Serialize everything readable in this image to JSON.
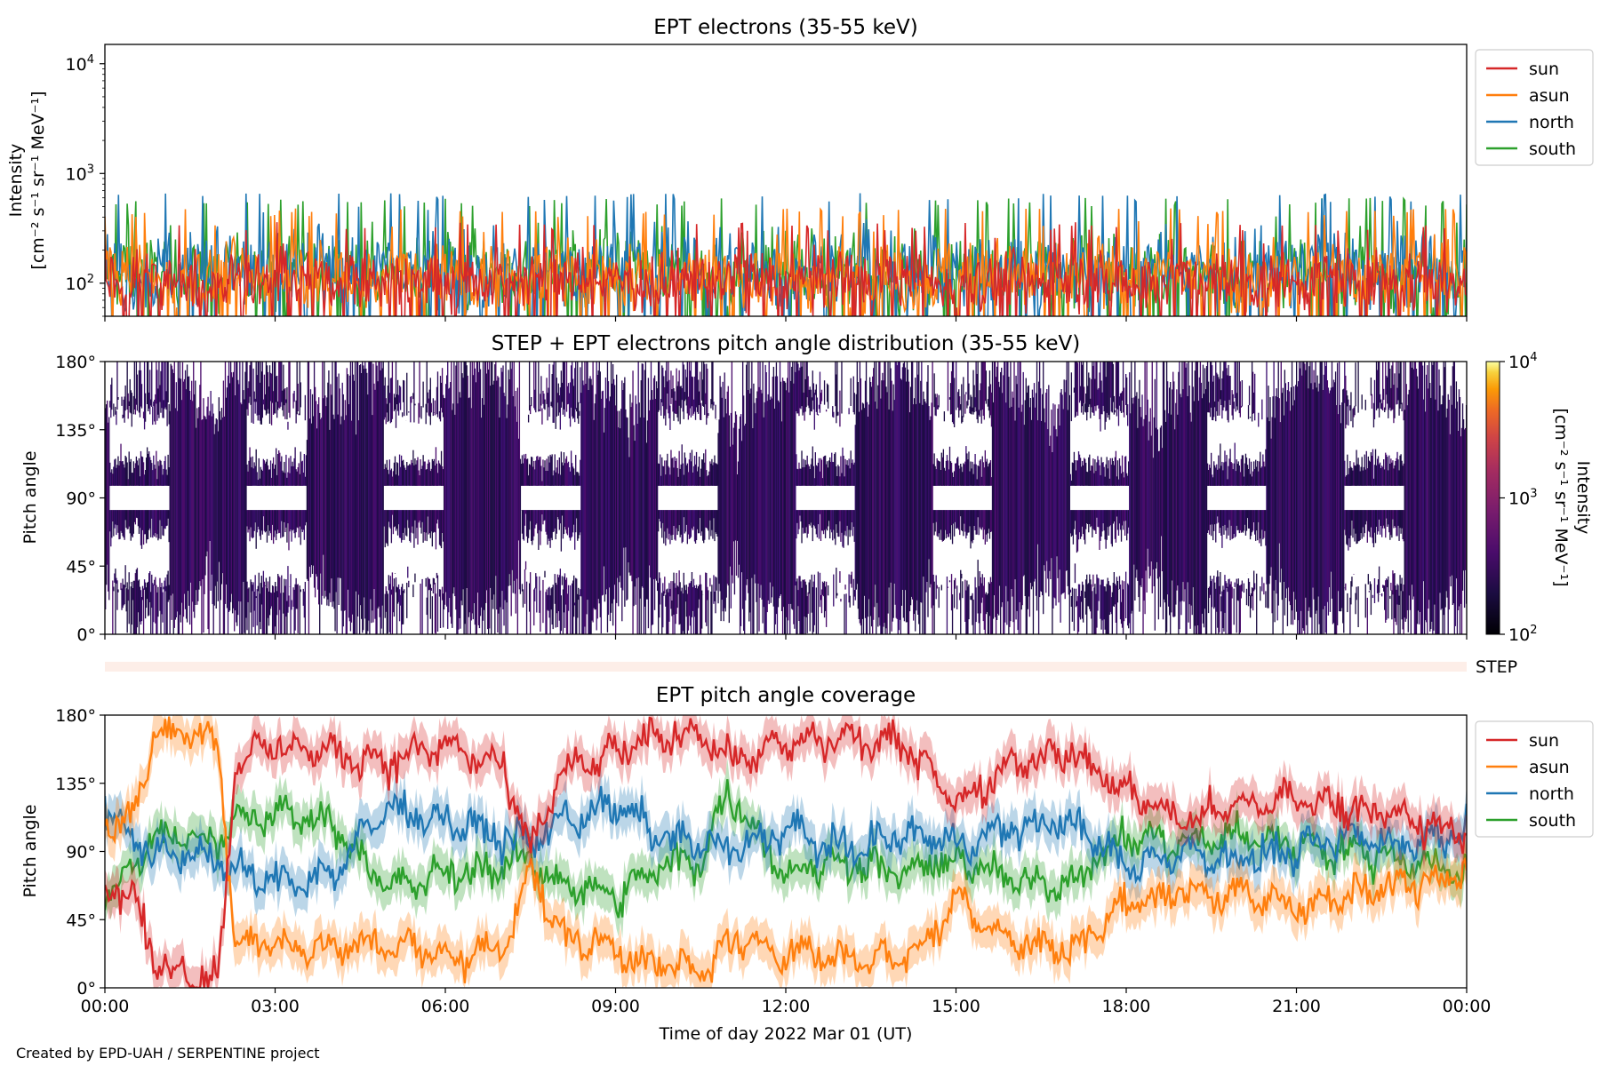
{
  "footer": "Created by EPD-UAH / SERPENTINE project",
  "xlabel": "Time of day 2022 Mar 01 (UT)",
  "time_ticks": [
    "00:00",
    "03:00",
    "06:00",
    "09:00",
    "12:00",
    "15:00",
    "18:00",
    "21:00",
    "00:00"
  ],
  "colors": {
    "sun": "#d62728",
    "asun": "#ff7f0e",
    "north": "#1f77b4",
    "south": "#2ca02c",
    "step_band": "#fdeee8"
  },
  "chart_data": [
    {
      "type": "line",
      "title": "EPT electrons (35-55 keV)",
      "ylabel": [
        "Intensity",
        "[cm⁻² s⁻¹ sr⁻¹ MeV⁻¹]"
      ],
      "yscale": "log",
      "ylim": [
        50,
        15000
      ],
      "yticks": [
        {
          "base": "10",
          "exp": "2"
        },
        {
          "base": "10",
          "exp": "3"
        },
        {
          "base": "10",
          "exp": "4"
        }
      ],
      "xlim_hours": [
        0,
        24
      ],
      "legend": [
        "sun",
        "asun",
        "north",
        "south"
      ],
      "legend_position": "right-top",
      "series_typical_ranges": {
        "sun": [
          60,
          300
        ],
        "asun": [
          60,
          400
        ],
        "north": [
          60,
          550
        ],
        "south": [
          60,
          500
        ]
      }
    },
    {
      "type": "heatmap",
      "title": "STEP + EPT electrons pitch angle distribution (35-55 keV)",
      "ylabel": "Pitch angle",
      "ylim": [
        0,
        180
      ],
      "yticks": [
        "0°",
        "45°",
        "90°",
        "135°",
        "180°"
      ],
      "colorbar": {
        "label": [
          "Intensity",
          "[cm⁻² s⁻¹ sr⁻¹ MeV⁻¹]"
        ],
        "scale": "log",
        "range": [
          100,
          10000
        ],
        "ticks": [
          {
            "base": "10",
            "exp": "2"
          },
          {
            "base": "10",
            "exp": "3"
          },
          {
            "base": "10",
            "exp": "4"
          }
        ],
        "colormap": "inferno"
      },
      "step_label": "STEP"
    },
    {
      "type": "line",
      "title": "EPT pitch angle coverage",
      "ylabel": "Pitch angle",
      "ylim": [
        0,
        180
      ],
      "yticks": [
        "0°",
        "45°",
        "90°",
        "135°",
        "180°"
      ],
      "legend": [
        "sun",
        "asun",
        "north",
        "south"
      ],
      "legend_position": "right-top",
      "series": [
        {
          "name": "sun",
          "x_hours": [
            0,
            0.5,
            0.9,
            1.5,
            2.0,
            2.3,
            3,
            4,
            5,
            6,
            7,
            7.5,
            8,
            9,
            9.8,
            10.5,
            11,
            12,
            13,
            14,
            14.5,
            15,
            16,
            17,
            18,
            19,
            20,
            21,
            22,
            23,
            24
          ],
          "values": [
            70,
            60,
            15,
            10,
            5,
            150,
            160,
            155,
            150,
            160,
            145,
            90,
            140,
            155,
            165,
            170,
            150,
            160,
            165,
            160,
            150,
            120,
            150,
            155,
            130,
            110,
            120,
            125,
            120,
            110,
            100
          ]
        },
        {
          "name": "asun",
          "x_hours": [
            0,
            0.5,
            0.9,
            1.5,
            2.0,
            2.3,
            3,
            4,
            5,
            6,
            7,
            7.5,
            8,
            9,
            9.8,
            10.5,
            11,
            12,
            13,
            14,
            14.5,
            15,
            16,
            17,
            18,
            19,
            20,
            21,
            22,
            23,
            24
          ],
          "values": [
            110,
            115,
            165,
            170,
            160,
            30,
            30,
            25,
            30,
            20,
            25,
            80,
            35,
            25,
            15,
            10,
            30,
            25,
            20,
            20,
            30,
            60,
            30,
            25,
            55,
            65,
            60,
            55,
            60,
            70,
            80
          ]
        },
        {
          "name": "north",
          "x_hours": [
            0,
            0.5,
            0.9,
            1.5,
            2.0,
            2.3,
            3,
            4,
            5,
            6,
            7,
            7.5,
            8,
            9,
            9.8,
            10.5,
            11,
            12,
            13,
            14,
            14.5,
            15,
            16,
            17,
            18,
            19,
            20,
            21,
            22,
            23,
            24
          ],
          "values": [
            120,
            100,
            85,
            90,
            85,
            75,
            70,
            75,
            120,
            110,
            100,
            95,
            110,
            120,
            100,
            95,
            90,
            105,
            90,
            100,
            100,
            95,
            105,
            110,
            80,
            90,
            85,
            90,
            100,
            95,
            105
          ]
        },
        {
          "name": "south",
          "x_hours": [
            0,
            0.5,
            0.9,
            1.5,
            2.0,
            2.3,
            3,
            4,
            5,
            6,
            7,
            7.5,
            8,
            9,
            9.8,
            10.5,
            11,
            12,
            13,
            14,
            14.5,
            15,
            16,
            17,
            18,
            19,
            20,
            21,
            22,
            23,
            24
          ],
          "values": [
            60,
            80,
            100,
            100,
            95,
            110,
            115,
            110,
            65,
            75,
            80,
            85,
            70,
            60,
            80,
            85,
            130,
            75,
            85,
            75,
            80,
            85,
            70,
            70,
            100,
            95,
            100,
            95,
            90,
            85,
            75
          ]
        }
      ]
    }
  ]
}
